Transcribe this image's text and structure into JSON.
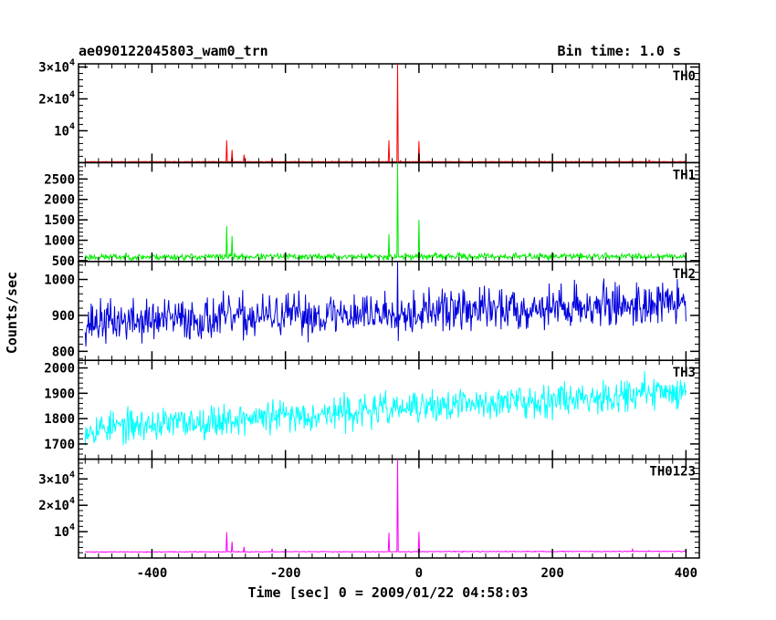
{
  "title": "ae090122045803_wam0_trn",
  "bin_time": "Bin time: 1.0 s",
  "chart_data": {
    "type": "line",
    "xlabel": "Time [sec] 0 = 2009/01/22 04:58:03",
    "ylabel": "Counts/sec",
    "xlim": [
      -510,
      420
    ],
    "x_ticks": [
      "-400",
      "-200",
      "0",
      "200",
      "400"
    ],
    "x_tick_values": [
      -400,
      -200,
      0,
      200,
      400
    ],
    "grid": false,
    "series": [
      {
        "name": "TH0",
        "color": "#ff0000",
        "ylim": [
          0,
          31000
        ],
        "y_ticks": [
          {
            "v": 10000,
            "label": "10",
            "sup": "4"
          },
          {
            "v": 20000,
            "label": "2×10",
            "sup": "4"
          },
          {
            "v": 30000,
            "label": "3×10",
            "sup": "4"
          }
        ],
        "baseline": 300,
        "noise": 60,
        "trend": 0,
        "seed": 11,
        "spikes": [
          [
            -288,
            7000
          ],
          [
            -280,
            4000
          ],
          [
            -262,
            2500
          ],
          [
            -220,
            1500
          ],
          [
            -200,
            700
          ],
          [
            -130,
            500
          ],
          [
            -45,
            7000
          ],
          [
            -32,
            31000
          ],
          [
            -28,
            600
          ],
          [
            0,
            6800
          ],
          [
            -390,
            300
          ],
          [
            -360,
            300
          ],
          [
            130,
            400
          ],
          [
            170,
            300
          ],
          [
            320,
            900
          ],
          [
            345,
            800
          ]
        ]
      },
      {
        "name": "TH1",
        "color": "#00ee00",
        "ylim": [
          480,
          2900
        ],
        "y_ticks": [
          {
            "v": 500,
            "label": "500"
          },
          {
            "v": 1000,
            "label": "1000"
          },
          {
            "v": 1500,
            "label": "1500"
          },
          {
            "v": 2000,
            "label": "2000"
          },
          {
            "v": 2500,
            "label": "2500"
          }
        ],
        "baseline": 590,
        "noise": 55,
        "trend": 20,
        "seed": 23,
        "spikes": [
          [
            -288,
            1350
          ],
          [
            -280,
            1100
          ],
          [
            -45,
            1150
          ],
          [
            -32,
            2900
          ],
          [
            0,
            1500
          ]
        ]
      },
      {
        "name": "TH2",
        "color": "#0000dd",
        "ylim": [
          775,
          1050
        ],
        "y_ticks": [
          {
            "v": 800,
            "label": "800"
          },
          {
            "v": 900,
            "label": "900"
          },
          {
            "v": 1000,
            "label": "1000"
          }
        ],
        "baseline": 880,
        "noise": 42,
        "trend": 55,
        "seed": 37,
        "spikes": [
          [
            -32,
            1050
          ]
        ]
      },
      {
        "name": "TH3",
        "color": "#00ffff",
        "ylim": [
          1640,
          2030
        ],
        "y_ticks": [
          {
            "v": 1700,
            "label": "1700"
          },
          {
            "v": 1800,
            "label": "1800"
          },
          {
            "v": 1900,
            "label": "1900"
          },
          {
            "v": 2000,
            "label": "2000"
          }
        ],
        "baseline": 1760,
        "noise": 45,
        "trend": 150,
        "seed": 53,
        "spikes": []
      },
      {
        "name": "TH0123",
        "color": "#ff00ff",
        "ylim": [
          0,
          37500
        ],
        "y_ticks": [
          {
            "v": 10000,
            "label": "10",
            "sup": "4"
          },
          {
            "v": 20000,
            "label": "2×10",
            "sup": "4"
          },
          {
            "v": 30000,
            "label": "3×10",
            "sup": "4"
          }
        ],
        "baseline": 2300,
        "noise": 110,
        "trend": 200,
        "seed": 71,
        "spikes": [
          [
            -288,
            9800
          ],
          [
            -280,
            6200
          ],
          [
            -262,
            4200
          ],
          [
            -220,
            3500
          ],
          [
            -200,
            2800
          ],
          [
            -45,
            9600
          ],
          [
            -32,
            37500
          ],
          [
            0,
            10000
          ],
          [
            130,
            2700
          ],
          [
            320,
            3300
          ],
          [
            345,
            2800
          ]
        ]
      }
    ]
  }
}
